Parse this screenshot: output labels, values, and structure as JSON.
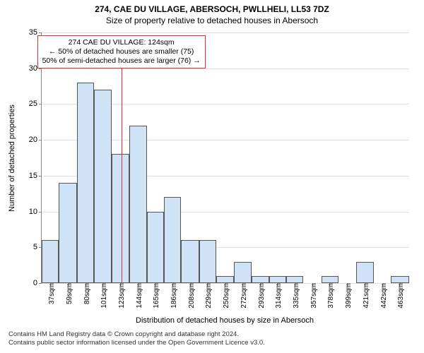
{
  "meta": {
    "title_main": "274, CAE DU VILLAGE, ABERSOCH, PWLLHELI, LL53 7DZ",
    "title_sub": "Size of property relative to detached houses in Abersoch",
    "ylabel": "Number of detached properties",
    "xlabel": "Distribution of detached houses by size in Abersoch",
    "footer_line1": "Contains HM Land Registry data © Crown copyright and database right 2024.",
    "footer_line2": "Contains public sector information licensed under the Open Government Licence v3.0."
  },
  "callout": {
    "line1": "274 CAE DU VILLAGE: 124sqm",
    "line2": "← 50% of detached houses are smaller (75)",
    "line3": "50% of semi-detached houses are larger (76) →"
  },
  "chart": {
    "type": "histogram",
    "background_color": "#ffffff",
    "grid_color": "#e0e0e0",
    "axis_color": "#888888",
    "bar_fill": "#cfe2f6",
    "bar_border": "#555555",
    "marker_color": "#d33333",
    "marker_x": 124,
    "xlim": [
      27,
      475
    ],
    "ylim": [
      0,
      35
    ],
    "ytick_step": 5,
    "title_fontsize": 12,
    "label_fontsize": 11,
    "tick_fontsize": 10,
    "x_ticks": [
      {
        "x": 37,
        "label": "37sqm"
      },
      {
        "x": 59,
        "label": "59sqm"
      },
      {
        "x": 80,
        "label": "80sqm"
      },
      {
        "x": 101,
        "label": "101sqm"
      },
      {
        "x": 123,
        "label": "123sqm"
      },
      {
        "x": 144,
        "label": "144sqm"
      },
      {
        "x": 165,
        "label": "165sqm"
      },
      {
        "x": 186,
        "label": "186sqm"
      },
      {
        "x": 208,
        "label": "208sqm"
      },
      {
        "x": 229,
        "label": "229sqm"
      },
      {
        "x": 250,
        "label": "250sqm"
      },
      {
        "x": 272,
        "label": "272sqm"
      },
      {
        "x": 293,
        "label": "293sqm"
      },
      {
        "x": 314,
        "label": "314sqm"
      },
      {
        "x": 335,
        "label": "335sqm"
      },
      {
        "x": 357,
        "label": "357sqm"
      },
      {
        "x": 378,
        "label": "378sqm"
      },
      {
        "x": 399,
        "label": "399sqm"
      },
      {
        "x": 421,
        "label": "421sqm"
      },
      {
        "x": 442,
        "label": "442sqm"
      },
      {
        "x": 463,
        "label": "463sqm"
      }
    ],
    "bars": [
      {
        "x0": 27,
        "x1": 48,
        "y": 6
      },
      {
        "x0": 48,
        "x1": 70,
        "y": 14
      },
      {
        "x0": 70,
        "x1": 91,
        "y": 28
      },
      {
        "x0": 91,
        "x1": 112,
        "y": 27
      },
      {
        "x0": 112,
        "x1": 134,
        "y": 18
      },
      {
        "x0": 134,
        "x1": 155,
        "y": 22
      },
      {
        "x0": 155,
        "x1": 176,
        "y": 10
      },
      {
        "x0": 176,
        "x1": 197,
        "y": 12
      },
      {
        "x0": 197,
        "x1": 219,
        "y": 6
      },
      {
        "x0": 219,
        "x1": 240,
        "y": 6
      },
      {
        "x0": 240,
        "x1": 261,
        "y": 1
      },
      {
        "x0": 261,
        "x1": 283,
        "y": 3
      },
      {
        "x0": 283,
        "x1": 304,
        "y": 1
      },
      {
        "x0": 304,
        "x1": 325,
        "y": 1
      },
      {
        "x0": 325,
        "x1": 346,
        "y": 1
      },
      {
        "x0": 346,
        "x1": 368,
        "y": 0
      },
      {
        "x0": 368,
        "x1": 389,
        "y": 1
      },
      {
        "x0": 389,
        "x1": 410,
        "y": 0
      },
      {
        "x0": 410,
        "x1": 432,
        "y": 3
      },
      {
        "x0": 432,
        "x1": 453,
        "y": 0
      },
      {
        "x0": 453,
        "x1": 475,
        "y": 1
      }
    ]
  }
}
